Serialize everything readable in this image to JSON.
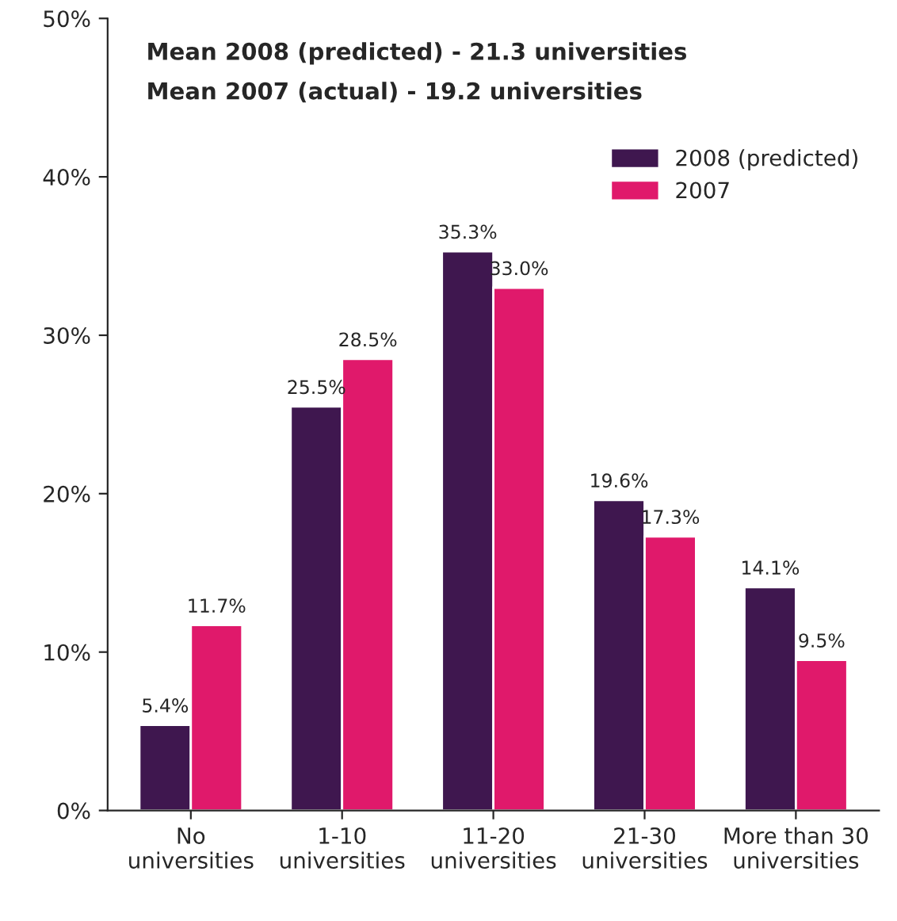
{
  "chart_data": {
    "type": "bar",
    "categories": [
      "No\nuniversities",
      "1-10\nuniversities",
      "11-20\nuniversities",
      "21-30\nuniversities",
      "More than 30\nuniversities"
    ],
    "series": [
      {
        "name": "2008 (predicted)",
        "color": "#3f174f",
        "values": [
          5.4,
          25.5,
          35.3,
          19.6,
          14.1
        ],
        "value_labels": [
          "5.4%",
          "25.5%",
          "35.3%",
          "19.6%",
          "14.1%"
        ]
      },
      {
        "name": "2007",
        "color": "#e0196b",
        "values": [
          11.7,
          28.5,
          33.0,
          17.3,
          9.5
        ],
        "value_labels": [
          "11.7%",
          "28.5%",
          "33.0%",
          "17.3%",
          "9.5%"
        ]
      }
    ],
    "ylim": [
      0,
      50
    ],
    "yticks": [
      {
        "value": 0,
        "label": "0%"
      },
      {
        "value": 10,
        "label": "10%"
      },
      {
        "value": 20,
        "label": "20%"
      },
      {
        "value": 30,
        "label": "30%"
      },
      {
        "value": 40,
        "label": "40%"
      },
      {
        "value": 50,
        "label": "50%"
      }
    ],
    "annotations": [
      "Mean 2008 (predicted) - 21.3 universities",
      "Mean 2007 (actual) - 19.2 universities"
    ],
    "legend": "top right",
    "grid": false
  }
}
